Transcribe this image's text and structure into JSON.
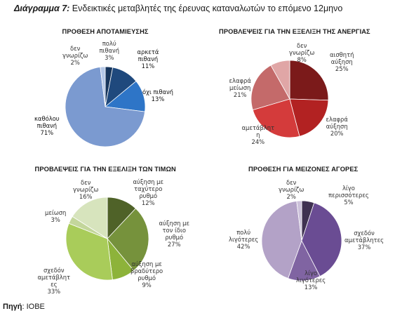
{
  "figure": {
    "title_bold": "Διάγραμμα 7:",
    "title_rest": " Ενδεικτικές μεταβλητές της έρευνας καταναλωτών το επόμενο 12μηνο",
    "source_bold": "Πηγή",
    "source_rest": ": ΙΟΒΕ"
  },
  "chart_data": [
    {
      "type": "pie",
      "title": "ΠΡΟΘΕΣΗ ΑΠΟΤΑΜΙΕΥΣΗΣ",
      "slices": [
        {
          "label": "πολύ πιθανή",
          "label_lines": [
            "πολύ",
            "πιθανή",
            "3%"
          ],
          "value": 3,
          "color": "#17365d"
        },
        {
          "label": "αρκετά πιθανή",
          "label_lines": [
            "αρκετά",
            "πιθανή",
            "11%"
          ],
          "value": 11,
          "color": "#1f497d"
        },
        {
          "label": "όχι πιθανή",
          "label_lines": [
            "όχι πιθανή",
            "13%"
          ],
          "value": 13,
          "color": "#2e75c7"
        },
        {
          "label": "καθόλου πιθανή",
          "label_lines": [
            "καθόλου",
            "πιθανή",
            "71%"
          ],
          "value": 71,
          "color": "#7b9ad0"
        },
        {
          "label": "δεν γνωρίζω",
          "label_lines": [
            "δεν",
            "γνωρίζω",
            "2%"
          ],
          "value": 2,
          "color": "#b4c7e7"
        }
      ]
    },
    {
      "type": "pie",
      "title": "ΠΡΟΒΛΕΨΕΙΣ ΓΙΑ ΤΗΝ ΕΞΕΛΙΞΗ ΤΗΣ ΑΝΕΡΓΙΑΣ",
      "slices": [
        {
          "label": "αισθητή αύξηση",
          "label_lines": [
            "αισθητή",
            "αύξηση",
            "25%"
          ],
          "value": 25,
          "color": "#7b1a1a"
        },
        {
          "label": "ελαφρά αύξηση",
          "label_lines": [
            "ελαφρά",
            "αύξηση",
            "20%"
          ],
          "value": 20,
          "color": "#b22222"
        },
        {
          "label": "αμετάβλητη",
          "label_lines": [
            "αμετάβλητ",
            "η",
            "24%"
          ],
          "value": 24,
          "color": "#d43b3b"
        },
        {
          "label": "ελαφρά μείωση",
          "label_lines": [
            "ελαφρά",
            "μείωση",
            "21%"
          ],
          "value": 21,
          "color": "#c46a6a"
        },
        {
          "label": "δεν γνωρίζω",
          "label_lines": [
            "δεν",
            "γνωρίζω",
            "8%"
          ],
          "value": 8,
          "color": "#e0a6a6"
        }
      ]
    },
    {
      "type": "pie",
      "title": "ΠΡΟΒΛΕΨΕΙΣ ΓΙΑ ΤΗΝ ΕΞΕΛΙΞΗ ΤΩΝ ΤΙΜΩΝ",
      "slices": [
        {
          "label": "αύξηση με ταχύτερο ρυθμό",
          "label_lines": [
            "αύξηση με",
            "ταχύτερο",
            "ρυθμό",
            "12%"
          ],
          "value": 12,
          "color": "#4f6228"
        },
        {
          "label": "αύξηση με τον ίδιο ρυθμό",
          "label_lines": [
            "αύξηση με",
            "τον ίδιο",
            "ρυθμό",
            "27%"
          ],
          "value": 27,
          "color": "#76923c"
        },
        {
          "label": "αύξηση με βραδύτερο ρυθμό",
          "label_lines": [
            "αύξηση με",
            "βραδύτερο",
            "ρυθμό",
            "9%"
          ],
          "value": 9,
          "color": "#8db33a"
        },
        {
          "label": "σχεδόν αμετάβλητες",
          "label_lines": [
            "σχεδόν",
            "αμετάβλητ",
            "ες",
            "33%"
          ],
          "value": 33,
          "color": "#a9cc5a"
        },
        {
          "label": "μείωση",
          "label_lines": [
            "μείωση",
            "3%"
          ],
          "value": 3,
          "color": "#c3d69b"
        },
        {
          "label": "δεν γνωρίζω",
          "label_lines": [
            "δεν",
            "γνωρίζω",
            "16%"
          ],
          "value": 16,
          "color": "#d7e4bd"
        }
      ]
    },
    {
      "type": "pie",
      "title": "ΠΡΟΘΕΣΗ ΓΙΑ ΜΕΙΖΟΝΕΣ ΑΓΟΡΕΣ",
      "slices": [
        {
          "label": "λίγο περισσότερες",
          "label_lines": [
            "λίγο",
            "περισσότερες",
            "5%"
          ],
          "value": 5,
          "color": "#3f3151"
        },
        {
          "label": "σχεδόν αμετάβλητες",
          "label_lines": [
            "σχεδόν",
            "αμετάβλητες",
            "37%"
          ],
          "value": 37,
          "color": "#6a4c93"
        },
        {
          "label": "λίγο λιγότερες",
          "label_lines": [
            "λίγο",
            "λιγότερες",
            "13%"
          ],
          "value": 13,
          "color": "#8064a2"
        },
        {
          "label": "πολύ λιγότερες",
          "label_lines": [
            "πολύ",
            "λιγότερες",
            "42%"
          ],
          "value": 42,
          "color": "#b3a2c7"
        },
        {
          "label": "δεν γνωρίζω",
          "label_lines": [
            "δεν",
            "γνωρίζω",
            "2%"
          ],
          "value": 2,
          "color": "#ccc1da"
        }
      ]
    }
  ]
}
